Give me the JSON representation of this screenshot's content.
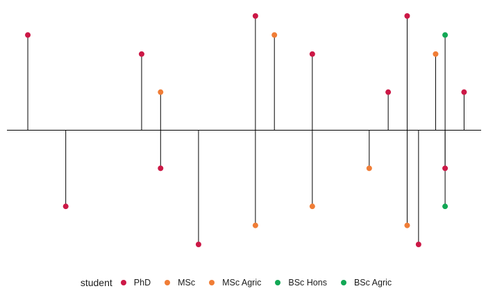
{
  "chart_data": {
    "type": "lollipop",
    "title": "",
    "xlabel": "",
    "ylabel": "",
    "baseline": 0,
    "xlim": [
      0,
      25
    ],
    "ylim": [
      -6,
      6
    ],
    "grid": false,
    "legend": {
      "title": "student",
      "position": "bottom",
      "entries": [
        {
          "label": "PhD",
          "color": "#cc1846"
        },
        {
          "label": "MSc",
          "color": "#f07d36"
        },
        {
          "label": "MSc Agric",
          "color": "#f07d36"
        },
        {
          "label": "BSc Hons",
          "color": "#12a855"
        },
        {
          "label": "BSc Agric",
          "color": "#12a855"
        }
      ]
    },
    "points": [
      {
        "x": 1.1,
        "y": 5,
        "student": "PhD"
      },
      {
        "x": 3.1,
        "y": -4,
        "student": "PhD"
      },
      {
        "x": 7.1,
        "y": 4,
        "student": "PhD"
      },
      {
        "x": 8.1,
        "y": 2,
        "student": "MSc"
      },
      {
        "x": 8.1,
        "y": -2,
        "student": "PhD"
      },
      {
        "x": 10.1,
        "y": -6,
        "student": "PhD"
      },
      {
        "x": 13.1,
        "y": 6,
        "student": "PhD"
      },
      {
        "x": 13.1,
        "y": -5,
        "student": "MSc"
      },
      {
        "x": 14.1,
        "y": 5,
        "student": "MSc"
      },
      {
        "x": 16.1,
        "y": 4,
        "student": "PhD"
      },
      {
        "x": 16.1,
        "y": -4,
        "student": "MSc"
      },
      {
        "x": 19.1,
        "y": -2,
        "student": "MSc"
      },
      {
        "x": 20.1,
        "y": 2,
        "student": "PhD"
      },
      {
        "x": 21.1,
        "y": 6,
        "student": "PhD"
      },
      {
        "x": 21.1,
        "y": -5,
        "student": "MSc"
      },
      {
        "x": 21.7,
        "y": -6,
        "student": "PhD"
      },
      {
        "x": 22.6,
        "y": 4,
        "student": "MSc"
      },
      {
        "x": 23.1,
        "y": 5,
        "student": "BSc Hons"
      },
      {
        "x": 23.1,
        "y": -2,
        "student": "PhD"
      },
      {
        "x": 23.1,
        "y": -4,
        "student": "BSc Hons"
      },
      {
        "x": 24.1,
        "y": 2,
        "student": "PhD"
      }
    ]
  }
}
